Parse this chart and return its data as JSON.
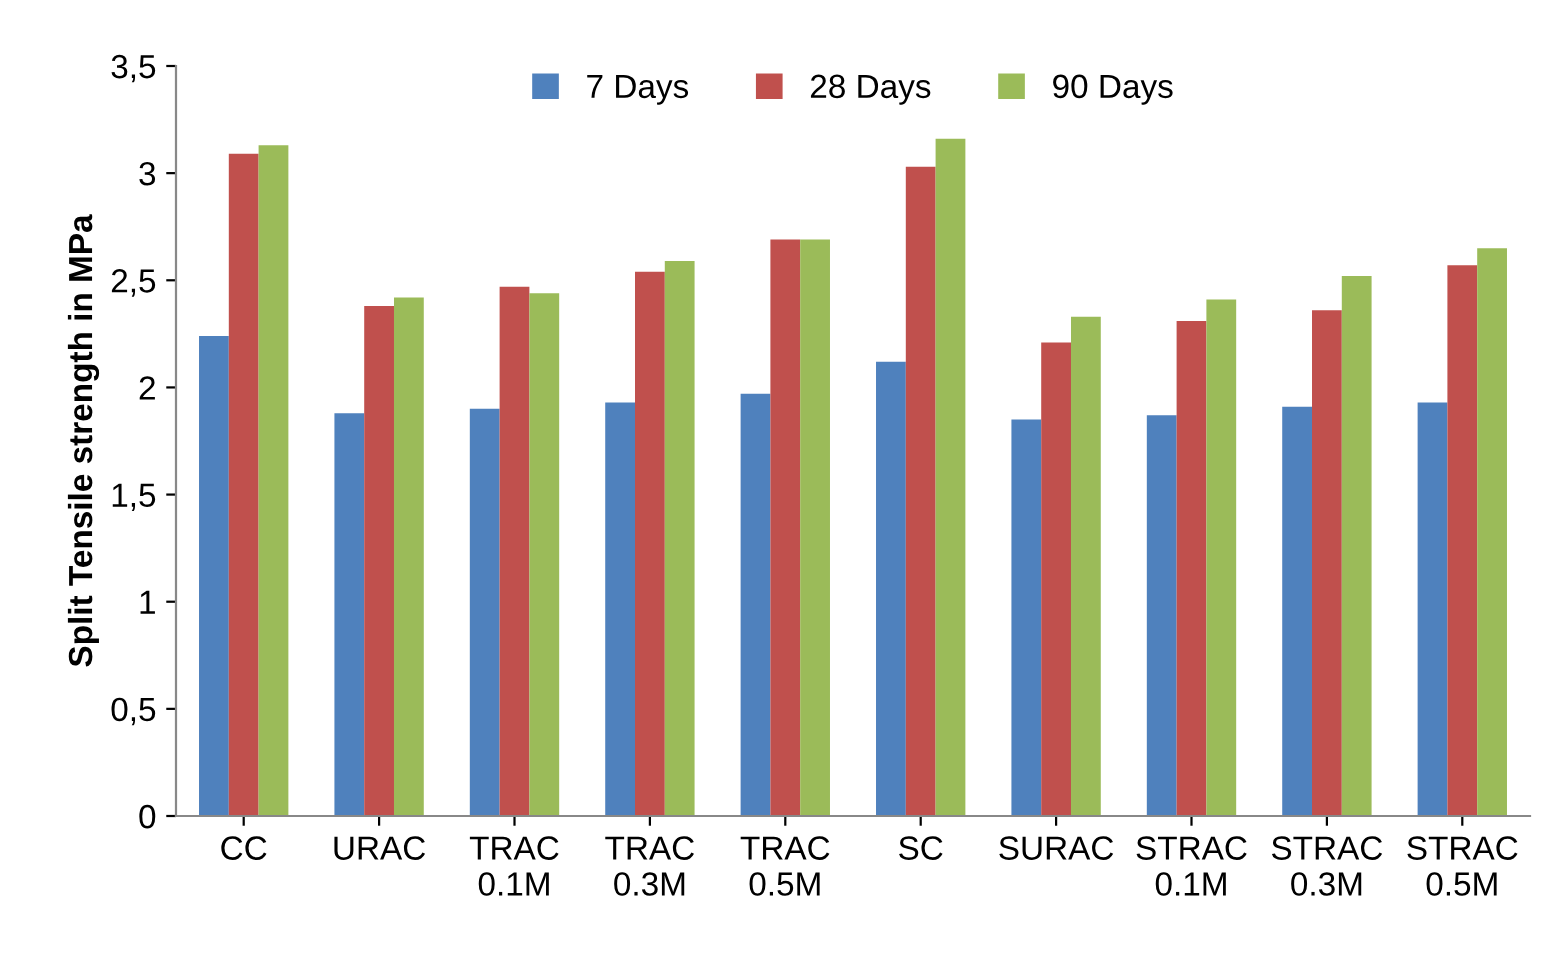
{
  "chart_data": {
    "type": "bar",
    "ylabel": "Split Tensile strength in MPa",
    "categories": [
      "CC",
      "URAC",
      "TRAC\n0.1M",
      "TRAC\n0.3M",
      "TRAC\n0.5M",
      "SC",
      "SURAC",
      "STRAC\n0.1M",
      "STRAC\n0.3M",
      "STRAC\n0.5M"
    ],
    "series": [
      {
        "name": "7 Days",
        "color": "#4f81bd",
        "values": [
          2.24,
          1.88,
          1.9,
          1.93,
          1.97,
          2.12,
          1.85,
          1.87,
          1.91,
          1.93
        ]
      },
      {
        "name": "28 Days",
        "color": "#c0504d",
        "values": [
          3.09,
          2.38,
          2.47,
          2.54,
          2.69,
          3.03,
          2.21,
          2.31,
          2.36,
          2.57
        ]
      },
      {
        "name": "90 Days",
        "color": "#9bbb59",
        "values": [
          3.13,
          2.42,
          2.44,
          2.59,
          2.69,
          3.16,
          2.33,
          2.41,
          2.52,
          2.65
        ]
      }
    ],
    "ylim": [
      0,
      3.5
    ],
    "yticks": [
      0,
      {
        "value": 0.5,
        "label": "0,5"
      },
      1,
      {
        "value": 1.5,
        "label": "1,5"
      },
      2,
      {
        "value": 2.5,
        "label": "2,5"
      },
      3,
      {
        "value": 3.5,
        "label": "3,5"
      }
    ],
    "grid": false,
    "legend": "top"
  }
}
